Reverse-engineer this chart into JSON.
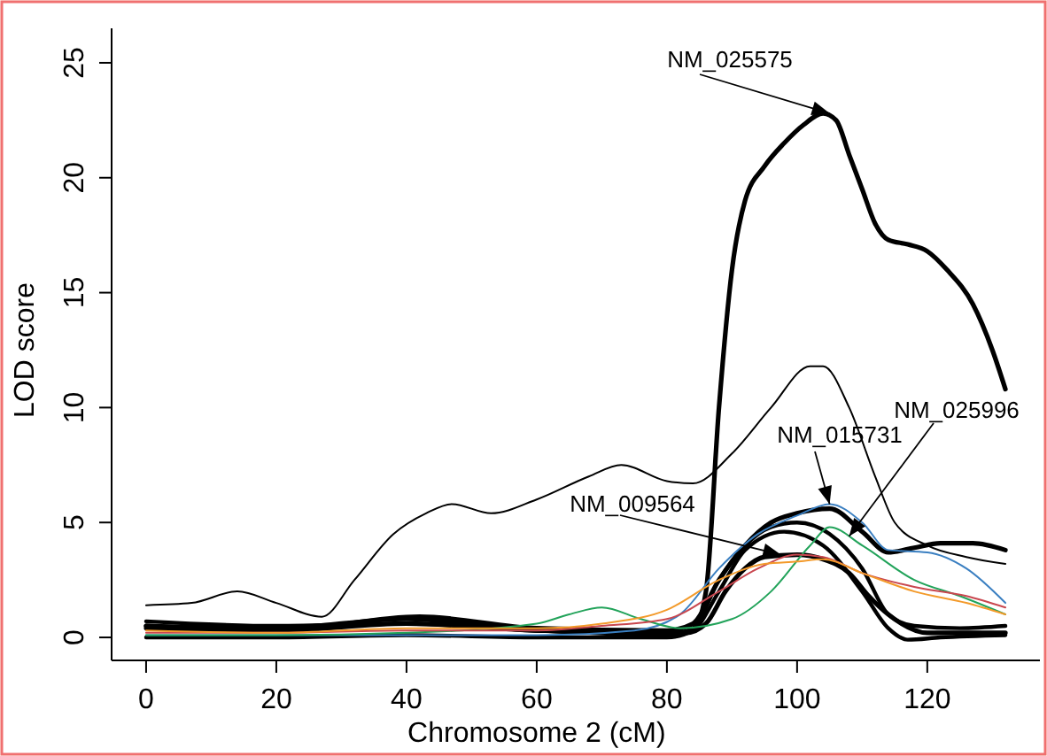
{
  "chart_data": {
    "type": "line",
    "xlabel": "Chromosome 2 (cM)",
    "ylabel": "LOD score",
    "xlim": [
      -5.3,
      137.3
    ],
    "ylim": [
      -1.0,
      26.5
    ],
    "xticks": [
      0,
      20,
      40,
      60,
      80,
      100,
      120
    ],
    "yticks": [
      0,
      5,
      10,
      15,
      20,
      25
    ],
    "grid": false,
    "line_style": "solid",
    "series": [
      {
        "color": "#000000",
        "x": [
          0,
          20,
          40,
          60,
          80,
          84,
          86,
          88,
          90,
          92,
          95,
          98,
          101,
          104,
          106,
          108,
          110,
          112,
          114,
          117,
          120,
          123,
          127,
          130,
          132
        ],
        "values": [
          0.5,
          0.4,
          0.8,
          0.3,
          0.2,
          0.3,
          2,
          10,
          16,
          19,
          20.5,
          21.5,
          22.3,
          22.8,
          22.5,
          21,
          19.5,
          18,
          17.3,
          17.1,
          16.8,
          16,
          14.5,
          12.5,
          10.8
        ]
      },
      {
        "color": "#000000",
        "x": [
          0,
          7,
          14,
          20,
          27,
          32,
          38,
          43,
          47,
          53,
          60,
          68,
          73,
          80,
          84,
          90,
          96,
          102,
          104,
          108,
          112,
          115,
          120,
          126,
          132
        ],
        "values": [
          1.4,
          1.5,
          2.0,
          1.5,
          0.9,
          2.5,
          4.5,
          5.4,
          5.8,
          5.4,
          6.0,
          7.0,
          7.5,
          6.8,
          6.7,
          8.0,
          10.0,
          11.8,
          11.8,
          10.0,
          7.0,
          5.0,
          4.0,
          3.5,
          3.2
        ]
      },
      {
        "color": "#3a7fc1",
        "x": [
          0,
          20,
          40,
          60,
          75,
          82,
          88,
          94,
          100,
          105,
          110,
          114,
          120,
          126,
          132
        ],
        "values": [
          0.1,
          0.1,
          0.1,
          0.1,
          0.3,
          1.0,
          3.0,
          4.5,
          5.3,
          5.8,
          5.0,
          3.8,
          3.7,
          3.0,
          1.5
        ]
      },
      {
        "color": "#000000",
        "x": [
          0,
          20,
          42,
          60,
          80,
          84,
          88,
          92,
          96,
          100,
          105,
          110,
          114,
          118,
          122,
          127,
          132
        ],
        "values": [
          0.5,
          0.3,
          0.9,
          0.4,
          0.3,
          0.6,
          2.5,
          4.0,
          5.0,
          5.4,
          5.6,
          4.6,
          3.7,
          3.9,
          4.1,
          4.1,
          3.8
        ]
      },
      {
        "color": "#000000",
        "x": [
          0,
          20,
          40,
          60,
          80,
          84,
          88,
          92,
          96,
          100,
          105,
          110,
          114,
          118,
          125,
          132
        ],
        "values": [
          0.7,
          0.5,
          0.6,
          0.3,
          0.1,
          0.4,
          2.5,
          4.0,
          4.8,
          5.0,
          4.5,
          3.0,
          1.0,
          0.5,
          0.4,
          0.5
        ]
      },
      {
        "color": "#000000",
        "x": [
          0,
          20,
          40,
          60,
          80,
          84,
          88,
          92,
          98,
          104,
          110,
          114,
          117,
          122,
          132
        ],
        "values": [
          0.0,
          0.0,
          0.1,
          0.0,
          0.0,
          0.3,
          2.0,
          3.8,
          4.6,
          4.0,
          2.0,
          0.4,
          -0.1,
          0.0,
          0.1
        ]
      },
      {
        "color": "#000000",
        "x": [
          0,
          20,
          40,
          60,
          83,
          86,
          89,
          92,
          95,
          100,
          104,
          108,
          111,
          114,
          120,
          132
        ],
        "values": [
          0.4,
          0.3,
          0.6,
          0.3,
          0.2,
          0.6,
          2.0,
          3.0,
          3.5,
          3.6,
          3.4,
          2.8,
          1.8,
          1.0,
          0.2,
          0.2
        ]
      },
      {
        "color": "#22a35a",
        "x": [
          0,
          20,
          40,
          60,
          65,
          70,
          76,
          82,
          90,
          96,
          102,
          105,
          110,
          118,
          125,
          132
        ],
        "values": [
          0.1,
          0.1,
          0.2,
          0.6,
          1.0,
          1.3,
          0.8,
          0.4,
          0.8,
          2.0,
          4.0,
          4.8,
          4.0,
          2.5,
          1.8,
          1.0
        ]
      },
      {
        "color": "#c9474f",
        "x": [
          0,
          20,
          40,
          60,
          70,
          80,
          88,
          94,
          100,
          104,
          110,
          118,
          126,
          132
        ],
        "values": [
          0.2,
          0.2,
          0.3,
          0.3,
          0.5,
          0.8,
          2.0,
          3.0,
          3.6,
          3.5,
          2.8,
          2.2,
          1.8,
          1.3
        ]
      },
      {
        "color": "#f39a2a",
        "x": [
          0,
          20,
          40,
          60,
          70,
          80,
          88,
          95,
          100,
          104,
          110,
          118,
          126,
          132
        ],
        "values": [
          0.3,
          0.2,
          0.4,
          0.4,
          0.6,
          1.2,
          2.5,
          3.2,
          3.3,
          3.4,
          2.8,
          2.0,
          1.5,
          1.0
        ]
      }
    ],
    "annotations": [
      {
        "text": "NM_025575",
        "x": 105,
        "y": 22.8
      },
      {
        "text": "NM_015731",
        "x": 105,
        "y": 5.8
      },
      {
        "text": "NM_025996",
        "x": 108,
        "y": 4.4
      },
      {
        "text": "NM_009564",
        "x": 97.5,
        "y": 3.6
      }
    ]
  }
}
